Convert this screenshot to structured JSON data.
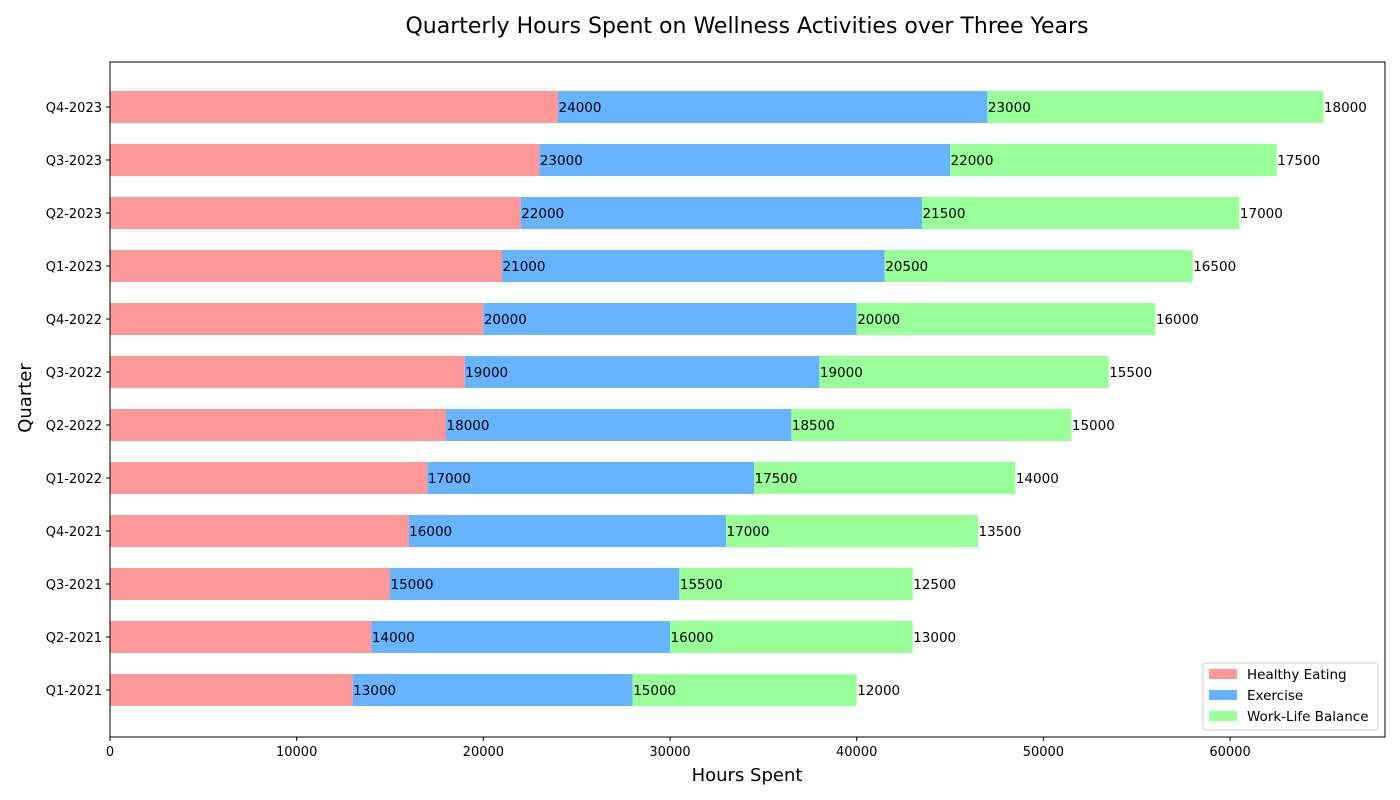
{
  "chart_data": {
    "type": "bar",
    "orientation": "horizontal",
    "stacked": true,
    "title": "Quarterly Hours Spent on Wellness Activities over Three Years",
    "xlabel": "Hours Spent",
    "ylabel": "Quarter",
    "xlim": [
      0,
      68300
    ],
    "xticks": [
      0,
      10000,
      20000,
      30000,
      40000,
      50000,
      60000
    ],
    "xtick_labels": [
      "0",
      "10000",
      "20000",
      "30000",
      "40000",
      "50000",
      "60000"
    ],
    "grid": false,
    "legend_position": "lower-right",
    "categories": [
      "Q1-2021",
      "Q2-2021",
      "Q3-2021",
      "Q4-2021",
      "Q1-2022",
      "Q2-2022",
      "Q3-2022",
      "Q4-2022",
      "Q1-2023",
      "Q2-2023",
      "Q3-2023",
      "Q4-2023"
    ],
    "series": [
      {
        "name": "Healthy Eating",
        "color": "#ff9999",
        "values": [
          13000,
          14000,
          15000,
          16000,
          17000,
          18000,
          19000,
          20000,
          21000,
          22000,
          23000,
          24000
        ]
      },
      {
        "name": "Exercise",
        "color": "#66b3ff",
        "values": [
          15000,
          16000,
          15500,
          17000,
          17500,
          18500,
          19000,
          20000,
          20500,
          21500,
          22000,
          23000
        ]
      },
      {
        "name": "Work-Life Balance",
        "color": "#99ff99",
        "values": [
          12000,
          13000,
          12500,
          13500,
          14000,
          15000,
          15500,
          16000,
          16500,
          17000,
          17500,
          18000
        ]
      }
    ]
  }
}
